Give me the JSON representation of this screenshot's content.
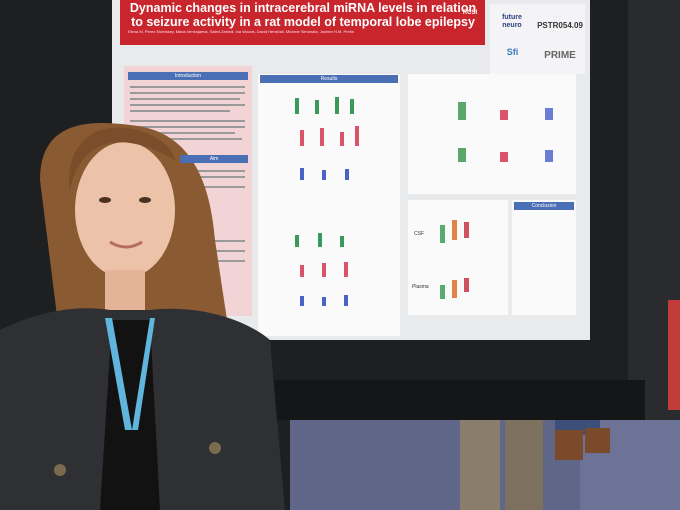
{
  "poster": {
    "title": "Dynamic changes in intracerebral miRNA levels in relation to seizure activity in a rat model of temporal lobe epilepsy",
    "authors": "Elena M. Perez Morrissey, Maria Venkojaeva, Saied Zahedi, Ina Woods, David Henshall, Michele Simonato, Jochen H.M. Prehn",
    "poster_id": "PSTR054.09",
    "logos": [
      "RCSI",
      "future neuro",
      "Sfi",
      "PRIME"
    ],
    "sections": [
      "Introduction",
      "Aim",
      "Results",
      "Conclusion"
    ],
    "figure_labels": [
      "CSF",
      "Plasma"
    ]
  }
}
